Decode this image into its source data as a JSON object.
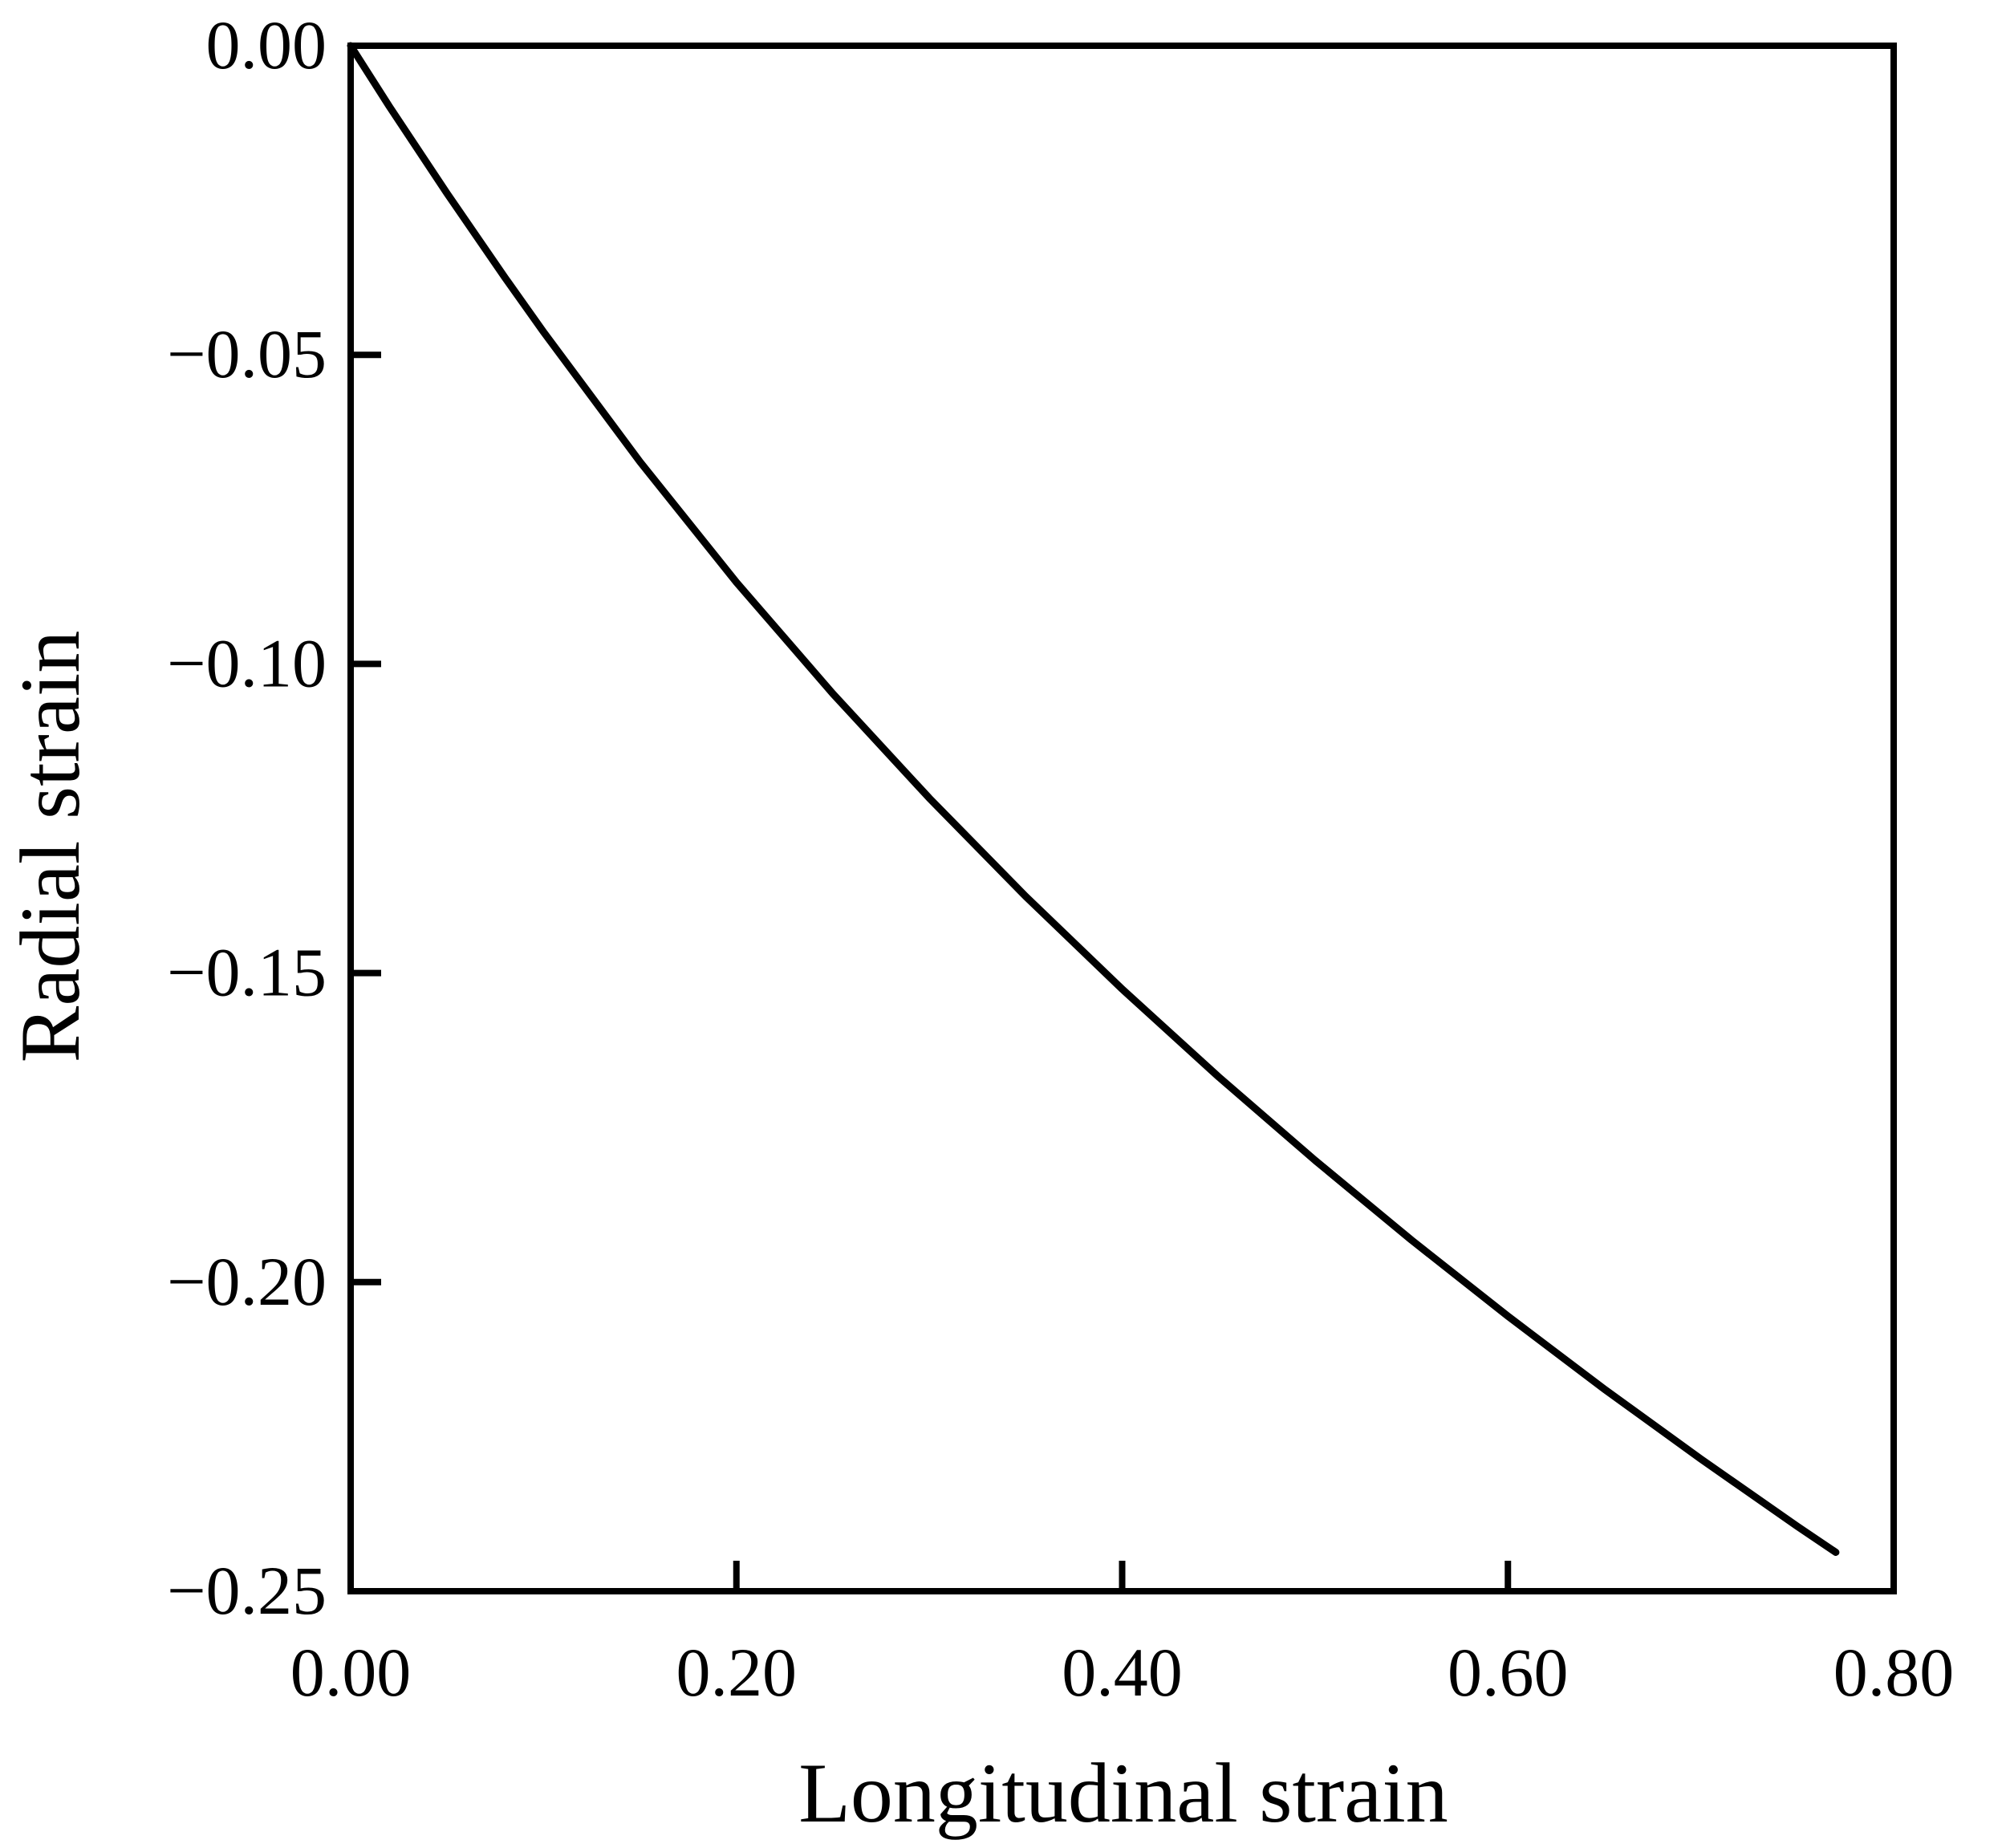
{
  "chart_data": {
    "type": "line",
    "title": "",
    "xlabel": "Longitudinal strain",
    "ylabel": "Radial strain",
    "xlim": [
      0.0,
      0.8
    ],
    "ylim": [
      -0.25,
      0.0
    ],
    "x_ticks": [
      "0.00",
      "0.20",
      "0.40",
      "0.60",
      "0.80"
    ],
    "y_ticks": [
      "0.00",
      "−0.05",
      "−0.10",
      "−0.15",
      "−0.20",
      "−0.25"
    ],
    "grid": false,
    "legend": "none",
    "line_color": "#000000",
    "series": [
      {
        "x": [
          0.0,
          0.02,
          0.05,
          0.08,
          0.1,
          0.15,
          0.2,
          0.25,
          0.3,
          0.35,
          0.4,
          0.45,
          0.5,
          0.55,
          0.6,
          0.65,
          0.7,
          0.75,
          0.77
        ],
        "y": [
          0.0,
          -0.0098,
          -0.0239,
          -0.0375,
          -0.0463,
          -0.0673,
          -0.0868,
          -0.1048,
          -0.1217,
          -0.1376,
          -0.1526,
          -0.1668,
          -0.1803,
          -0.1932,
          -0.2055,
          -0.2173,
          -0.2286,
          -0.2395,
          -0.2437
        ]
      }
    ]
  }
}
